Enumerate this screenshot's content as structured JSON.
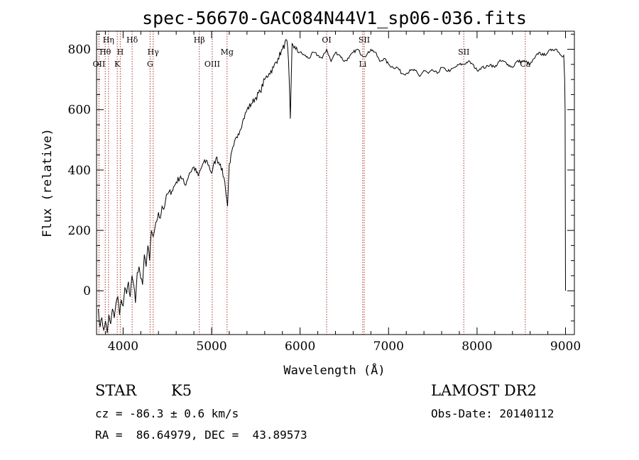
{
  "chart_data": {
    "type": "line",
    "title": "spec-56670-GAC084N44V1_sp06-036.fits",
    "xlabel": "Wavelength (Å)",
    "ylabel": "Flux (relative)",
    "xlim": [
      3700,
      9100
    ],
    "ylim": [
      -145,
      860
    ],
    "xticks": [
      4000,
      5000,
      6000,
      7000,
      8000,
      9000
    ],
    "yticks": [
      0,
      200,
      400,
      600,
      800
    ],
    "grid": false,
    "spectrum": {
      "x": [
        3720,
        3740,
        3760,
        3780,
        3800,
        3820,
        3840,
        3860,
        3880,
        3900,
        3920,
        3940,
        3960,
        3980,
        4000,
        4020,
        4040,
        4060,
        4080,
        4100,
        4120,
        4140,
        4160,
        4180,
        4200,
        4220,
        4240,
        4260,
        4280,
        4300,
        4320,
        4340,
        4360,
        4380,
        4400,
        4420,
        4440,
        4460,
        4480,
        4500,
        4550,
        4600,
        4650,
        4700,
        4750,
        4800,
        4850,
        4900,
        4950,
        5000,
        5050,
        5100,
        5150,
        5180,
        5200,
        5250,
        5300,
        5350,
        5400,
        5450,
        5500,
        5550,
        5600,
        5650,
        5700,
        5750,
        5800,
        5850,
        5870,
        5890,
        5910,
        5950,
        6000,
        6050,
        6100,
        6150,
        6200,
        6250,
        6300,
        6350,
        6400,
        6450,
        6500,
        6550,
        6600,
        6650,
        6700,
        6750,
        6800,
        6850,
        6900,
        6950,
        7000,
        7050,
        7100,
        7150,
        7200,
        7250,
        7300,
        7350,
        7400,
        7450,
        7500,
        7550,
        7600,
        7650,
        7700,
        7750,
        7800,
        7850,
        7900,
        7950,
        8000,
        8050,
        8100,
        8150,
        8200,
        8250,
        8300,
        8350,
        8400,
        8450,
        8500,
        8550,
        8600,
        8650,
        8700,
        8750,
        8800,
        8850,
        8900,
        8950,
        8980,
        8990,
        8995,
        9000
      ],
      "y": [
        -60,
        -120,
        -90,
        -130,
        -100,
        -140,
        -80,
        -110,
        -60,
        -90,
        -40,
        -20,
        -80,
        -30,
        -50,
        10,
        -10,
        30,
        -20,
        50,
        20,
        -40,
        60,
        80,
        40,
        20,
        120,
        80,
        150,
        100,
        200,
        180,
        210,
        230,
        260,
        240,
        280,
        270,
        300,
        320,
        330,
        360,
        380,
        350,
        390,
        410,
        380,
        420,
        430,
        390,
        440,
        420,
        360,
        280,
        420,
        480,
        520,
        560,
        600,
        620,
        640,
        660,
        700,
        720,
        740,
        770,
        800,
        830,
        760,
        570,
        820,
        800,
        790,
        780,
        770,
        790,
        780,
        770,
        800,
        760,
        790,
        780,
        760,
        770,
        790,
        800,
        780,
        780,
        800,
        790,
        760,
        770,
        750,
        740,
        740,
        720,
        720,
        730,
        730,
        710,
        730,
        720,
        730,
        720,
        740,
        730,
        730,
        740,
        750,
        750,
        760,
        750,
        730,
        740,
        740,
        750,
        740,
        760,
        760,
        750,
        740,
        760,
        760,
        760,
        750,
        770,
        790,
        780,
        790,
        800,
        800,
        780,
        780,
        700,
        600,
        0
      ]
    },
    "lines": [
      {
        "name": "Hθ",
        "x": 3798,
        "row": 2
      },
      {
        "name": "Hη",
        "x": 3835,
        "row": 1
      },
      {
        "name": "OII",
        "x": 3727,
        "row": 3
      },
      {
        "name": "H",
        "x": 3968,
        "row": 2
      },
      {
        "name": "K",
        "x": 3934,
        "row": 3
      },
      {
        "name": "Hδ",
        "x": 4102,
        "row": 1
      },
      {
        "name": "Hγ",
        "x": 4340,
        "row": 2
      },
      {
        "name": "G",
        "x": 4305,
        "row": 3
      },
      {
        "name": "Hβ",
        "x": 4861,
        "row": 1
      },
      {
        "name": "OIII",
        "x": 5007,
        "row": 3
      },
      {
        "name": "Mg",
        "x": 5175,
        "row": 2
      },
      {
        "name": "OI",
        "x": 6300,
        "row": 1
      },
      {
        "name": "SII",
        "x": 6725,
        "row": 1
      },
      {
        "name": "Li",
        "x": 6708,
        "row": 3
      },
      {
        "name": "SII",
        "x": 7850,
        "row": 2
      },
      {
        "name": "Ca",
        "x": 8545,
        "row": 3
      }
    ]
  },
  "info": {
    "class": "STAR",
    "subclass": "K5",
    "survey": "LAMOST DR2",
    "cz": "cz = -86.3 ± 0.6 km/s",
    "obs_date": "Obs-Date: 20140112",
    "radec": "RA =  86.64979, DEC =  43.89573"
  }
}
